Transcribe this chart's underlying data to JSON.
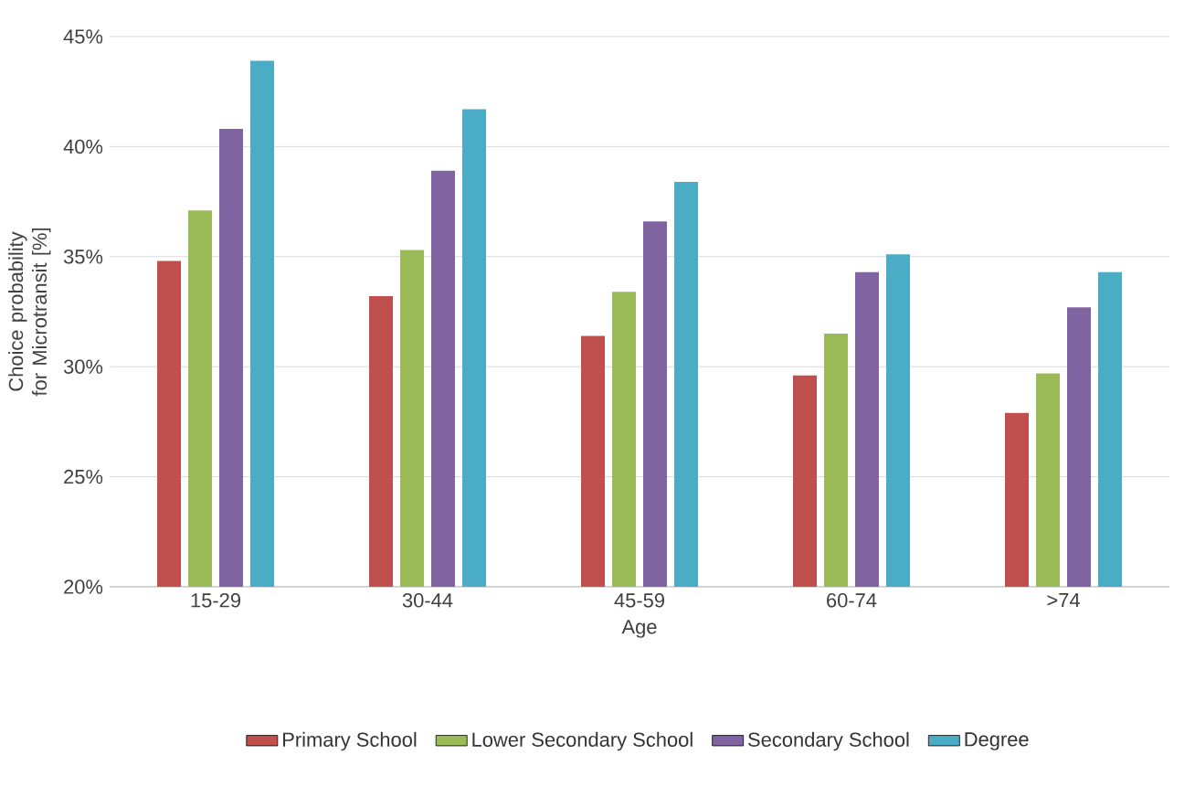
{
  "chart_data": {
    "type": "bar",
    "xlabel": "Age",
    "ylabel": "Choice probability for Microtransit [%]",
    "categories": [
      "15-29",
      "30-44",
      "45-59",
      "60-74",
      ">74"
    ],
    "series": [
      {
        "name": "Primary School",
        "color": "#c0504d",
        "values": [
          34.8,
          33.2,
          31.4,
          29.6,
          27.9
        ]
      },
      {
        "name": "Lower Secondary School",
        "color": "#9bbb59",
        "values": [
          37.1,
          35.3,
          33.4,
          31.5,
          29.7
        ]
      },
      {
        "name": "Secondary School",
        "color": "#8064a2",
        "values": [
          40.8,
          38.9,
          36.6,
          34.3,
          32.7
        ]
      },
      {
        "name": "Degree",
        "color": "#4bacc6",
        "values": [
          43.9,
          41.7,
          38.4,
          35.1,
          34.3
        ]
      }
    ],
    "ylim": [
      20,
      45
    ],
    "yticks": [
      {
        "value": 20,
        "label": "20%"
      },
      {
        "value": 25,
        "label": "25%"
      },
      {
        "value": 30,
        "label": "30%"
      },
      {
        "value": 35,
        "label": "35%"
      },
      {
        "value": 40,
        "label": "40%"
      },
      {
        "value": 45,
        "label": "45%"
      }
    ],
    "grid": "y",
    "legend": "bottom"
  }
}
